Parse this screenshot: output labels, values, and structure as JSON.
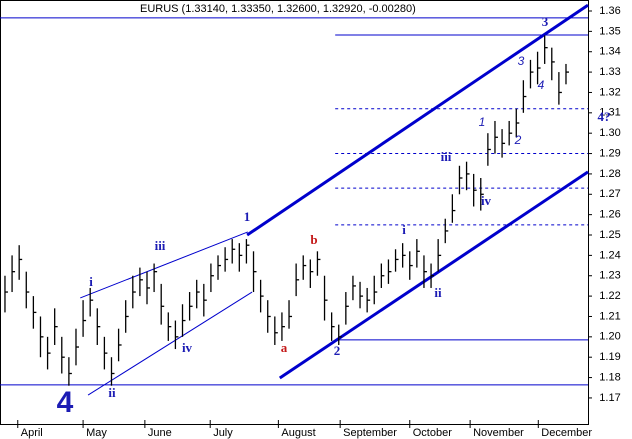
{
  "chart_data": {
    "type": "ohlc",
    "title": "EURUS (1.33140, 1.33350, 1.32600, 1.32920, -0.00280)",
    "color": "#000000",
    "line_color": "#0000cc",
    "close": [
      1.222,
      1.232,
      1.238,
      1.222,
      1.212,
      1.2,
      1.192,
      1.205,
      1.19,
      1.182,
      1.195,
      1.208,
      1.218,
      1.205,
      1.192,
      1.182,
      1.196,
      1.21,
      1.222,
      1.228,
      1.224,
      1.232,
      1.215,
      1.205,
      1.2,
      1.208,
      1.215,
      1.222,
      1.218,
      1.23,
      1.235,
      1.238,
      1.243,
      1.24,
      1.245,
      1.232,
      1.22,
      1.21,
      1.202,
      1.205,
      1.21,
      1.228,
      1.235,
      1.232,
      1.238,
      1.218,
      1.205,
      1.2,
      1.215,
      1.225,
      1.22,
      1.218,
      1.222,
      1.23,
      1.232,
      1.238,
      1.24,
      1.235,
      1.242,
      1.232,
      1.23,
      1.24,
      1.252,
      1.262,
      1.278,
      1.28,
      1.272,
      1.27,
      1.292,
      1.298,
      1.295,
      1.3,
      1.305,
      1.318,
      1.33,
      1.332,
      1.342,
      1.335,
      1.32,
      1.33
    ],
    "high": [
      1.23,
      1.24,
      1.245,
      1.232,
      1.22,
      1.21,
      1.2,
      1.214,
      1.2,
      1.19,
      1.204,
      1.218,
      1.224,
      1.214,
      1.2,
      1.19,
      1.204,
      1.218,
      1.23,
      1.234,
      1.232,
      1.236,
      1.226,
      1.212,
      1.208,
      1.216,
      1.222,
      1.228,
      1.226,
      1.236,
      1.24,
      1.244,
      1.248,
      1.246,
      1.248,
      1.242,
      1.228,
      1.218,
      1.21,
      1.212,
      1.218,
      1.236,
      1.24,
      1.238,
      1.242,
      1.23,
      1.212,
      1.206,
      1.222,
      1.23,
      1.227,
      1.224,
      1.23,
      1.236,
      1.238,
      1.243,
      1.246,
      1.242,
      1.248,
      1.24,
      1.236,
      1.248,
      1.258,
      1.27,
      1.284,
      1.286,
      1.28,
      1.278,
      1.3,
      1.306,
      1.302,
      1.306,
      1.312,
      1.326,
      1.336,
      1.34,
      1.348,
      1.342,
      1.33,
      1.334
    ],
    "low": [
      1.212,
      1.222,
      1.228,
      1.214,
      1.204,
      1.19,
      1.184,
      1.196,
      1.182,
      1.176,
      1.186,
      1.2,
      1.21,
      1.196,
      1.184,
      1.176,
      1.188,
      1.202,
      1.214,
      1.22,
      1.216,
      1.222,
      1.206,
      1.198,
      1.194,
      1.2,
      1.208,
      1.214,
      1.21,
      1.222,
      1.228,
      1.232,
      1.236,
      1.232,
      1.236,
      1.222,
      1.212,
      1.202,
      1.196,
      1.198,
      1.204,
      1.22,
      1.228,
      1.224,
      1.23,
      1.208,
      1.198,
      1.196,
      1.206,
      1.218,
      1.214,
      1.212,
      1.216,
      1.224,
      1.226,
      1.232,
      1.234,
      1.228,
      1.234,
      1.224,
      1.224,
      1.232,
      1.246,
      1.256,
      1.27,
      1.272,
      1.264,
      1.262,
      1.284,
      1.29,
      1.288,
      1.294,
      1.298,
      1.31,
      1.322,
      1.324,
      1.334,
      1.326,
      1.314,
      1.324
    ],
    "xlim": [
      -0.7,
      82.1
    ],
    "ylim": [
      1.1572,
      1.3654
    ],
    "xticks": [
      {
        "value": 1.8,
        "label": "April"
      },
      {
        "value": 11.0,
        "label": "May"
      },
      {
        "value": 19.7,
        "label": "June"
      },
      {
        "value": 28.9,
        "label": "July"
      },
      {
        "value": 38.5,
        "label": "August"
      },
      {
        "value": 47.2,
        "label": "September"
      },
      {
        "value": 57.0,
        "label": "October"
      },
      {
        "value": 65.5,
        "label": "November"
      },
      {
        "value": 75.1,
        "label": "December"
      }
    ],
    "yticks": [
      1.17,
      1.18,
      1.19,
      {
        "value": 1.2,
        "label": "1.20"
      },
      1.21,
      1.22,
      1.23,
      1.24,
      1.25,
      1.26,
      1.27,
      1.28,
      1.29,
      {
        "value": 1.3,
        "label": "1.30"
      },
      1.31,
      1.32,
      1.33,
      1.34,
      1.35,
      1.36
    ],
    "levels": [
      {
        "value": 1.3566,
        "from": -0.7,
        "style": "solid"
      },
      {
        "value": 1.3482,
        "from": 46.5,
        "style": "solid"
      },
      {
        "value": 1.312,
        "from": 46.5,
        "style": "dashed"
      },
      {
        "value": 1.29,
        "from": 46.5,
        "style": "dashed"
      },
      {
        "value": 1.273,
        "from": 46.5,
        "style": "dashed"
      },
      {
        "value": 1.255,
        "from": 46.5,
        "style": "dashed"
      },
      {
        "value": 1.1985,
        "from": 46.5,
        "style": "solid"
      },
      {
        "value": 1.1764,
        "from": -0.7,
        "style": "solid"
      }
    ],
    "trendlines": [
      {
        "x": [
          34.1,
          82.1
        ],
        "y": [
          1.25,
          1.3629
        ],
        "width": 3
      },
      {
        "x": [
          38.7,
          82.1
        ],
        "y": [
          1.1798,
          1.281
        ],
        "width": 3
      },
      {
        "x": [
          10.6,
          34.2
        ],
        "y": [
          1.2191,
          1.2515
        ],
        "width": 1
      },
      {
        "x": [
          11.7,
          34.8
        ],
        "y": [
          1.1714,
          1.222
        ],
        "width": 1
      }
    ],
    "annotations": [
      "4",
      "ii",
      "i",
      "iii",
      "iv",
      "1",
      "b",
      "a",
      "2",
      "i",
      "ii",
      "iii",
      "iv",
      "1",
      "2",
      "3",
      "4",
      "3",
      "4?"
    ]
  }
}
